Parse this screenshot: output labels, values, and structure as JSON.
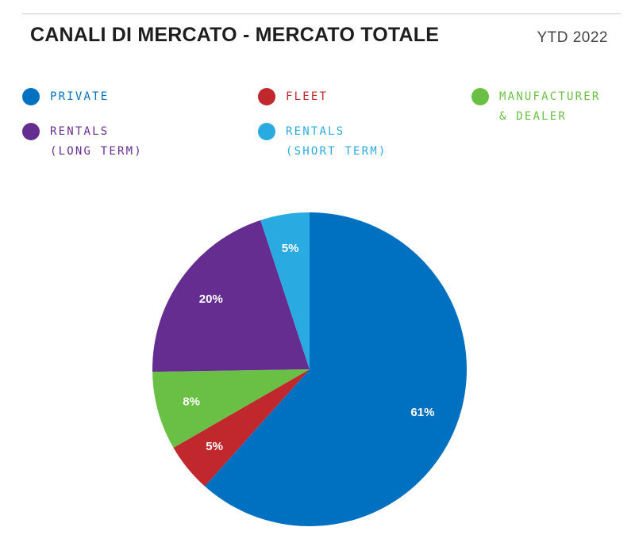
{
  "header": {
    "title": "CANALI DI MERCATO - MERCATO TOTALE",
    "period": "YTD 2022"
  },
  "chart_data": {
    "type": "pie",
    "title": "CANALI DI MERCATO - MERCATO TOTALE",
    "subtitle": "YTD 2022",
    "slices": [
      {
        "name": "PRIVATE",
        "value": 61,
        "label": "61%",
        "color": "#0070c0"
      },
      {
        "name": "FLEET",
        "value": 5,
        "label": "5%",
        "color": "#c0282d"
      },
      {
        "name": "MANUFACTURER & DEALER",
        "value": 8,
        "label": "8%",
        "color": "#6abf45"
      },
      {
        "name": "RENTALS (LONG TERM)",
        "value": 20,
        "label": "20%",
        "color": "#662d91"
      },
      {
        "name": "RENTALS (SHORT TERM)",
        "value": 5,
        "label": "5%",
        "color": "#29abe2"
      }
    ],
    "legend_placement": "top"
  },
  "legend": [
    {
      "label": "PRIVATE",
      "color": "#0070c0"
    },
    {
      "label": "FLEET",
      "color": "#c0282d"
    },
    {
      "label": "MANUFACTURER\n& DEALER",
      "color": "#6abf45"
    },
    {
      "label": "RENTALS\n(LONG TERM)",
      "color": "#662d91"
    },
    {
      "label": "RENTALS\n(SHORT TERM)",
      "color": "#29abe2"
    }
  ]
}
